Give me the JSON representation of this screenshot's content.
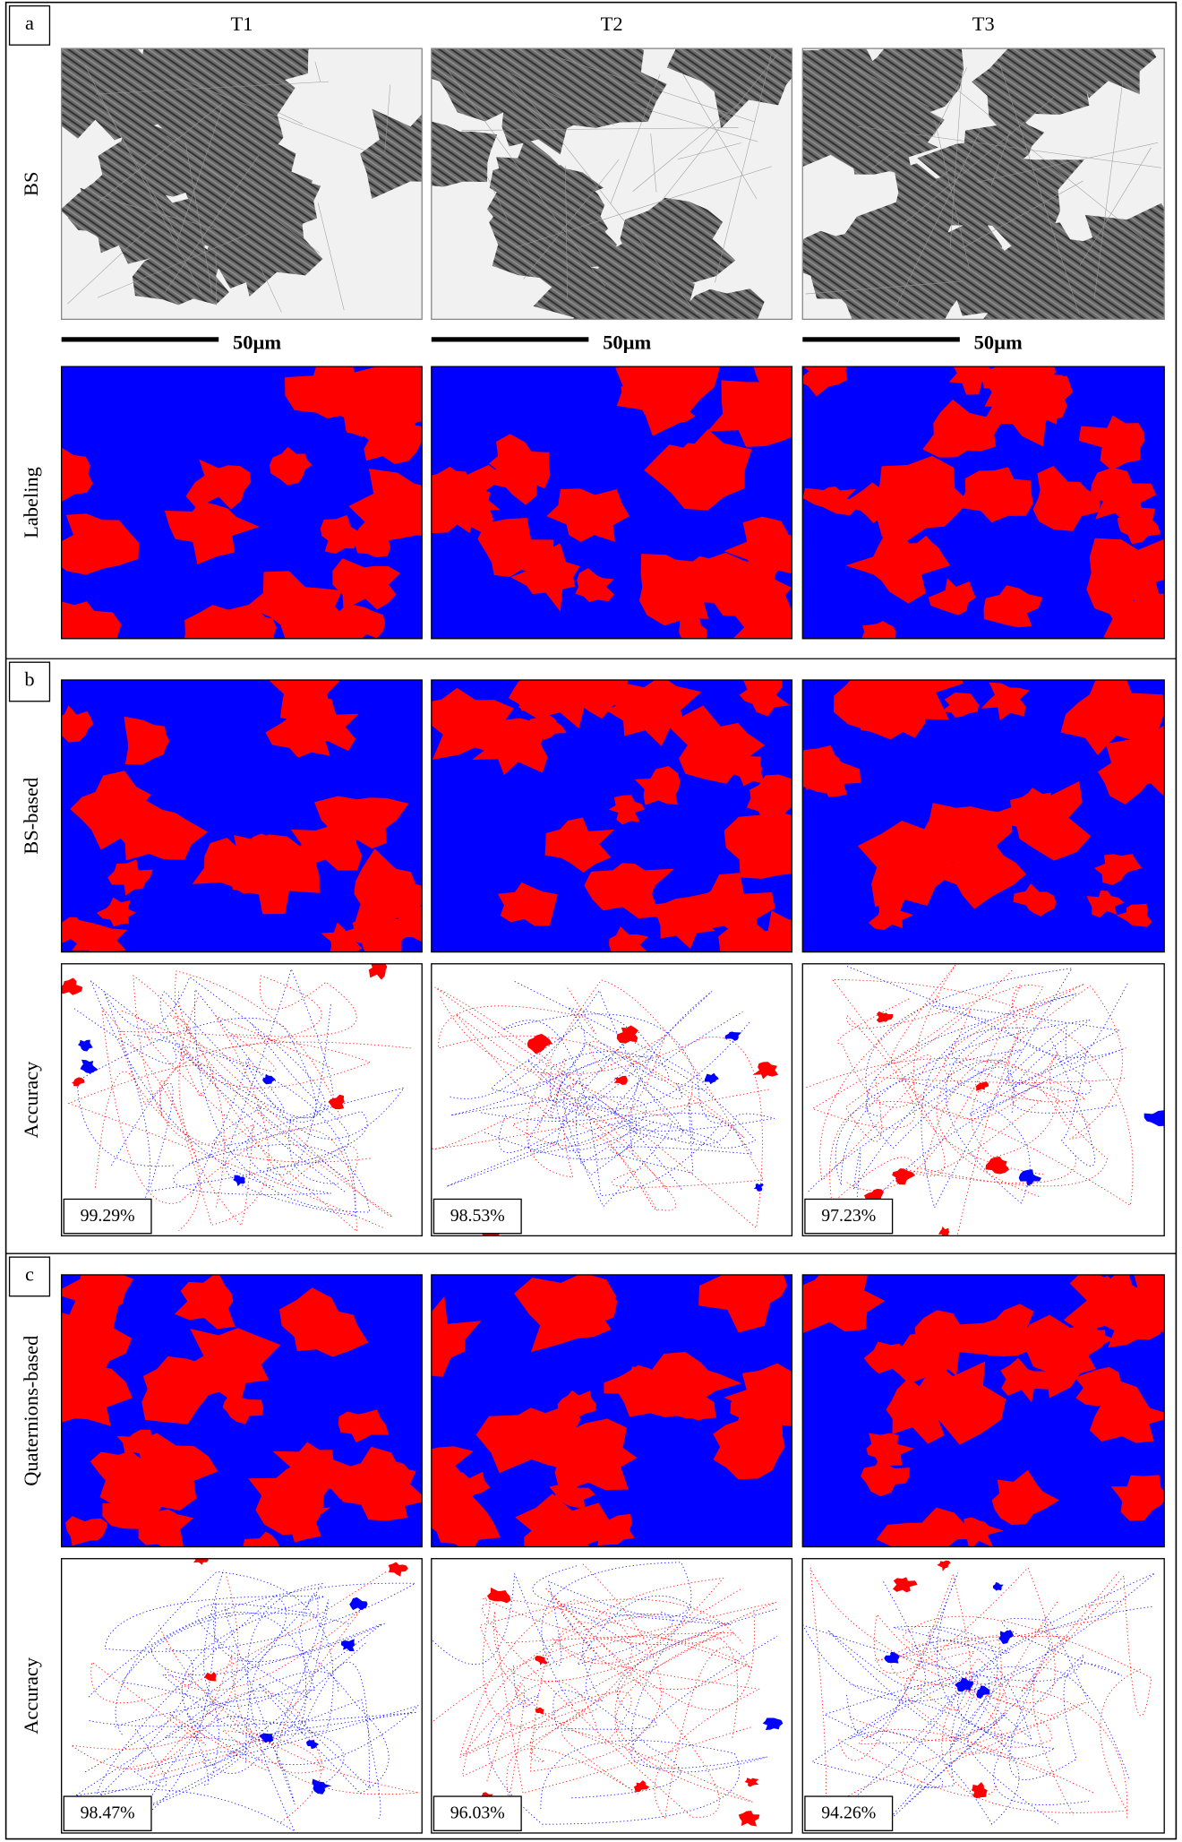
{
  "columns": [
    "T1",
    "T2",
    "T3"
  ],
  "panels": [
    {
      "label": "a",
      "rows": [
        {
          "label": "BS"
        },
        {
          "label": "Labeling"
        }
      ],
      "scale_bars": [
        "50µm",
        "50µm",
        "50µm"
      ]
    },
    {
      "label": "b",
      "rows": [
        {
          "label": "BS-based"
        },
        {
          "label": "Accuracy",
          "values": [
            "99.29%",
            "98.53%",
            "97.23%"
          ]
        }
      ]
    },
    {
      "label": "c",
      "rows": [
        {
          "label": "Quaternions-based"
        },
        {
          "label": "Accuracy",
          "values": [
            "98.47%",
            "96.03%",
            "94.26%"
          ]
        }
      ]
    }
  ]
}
